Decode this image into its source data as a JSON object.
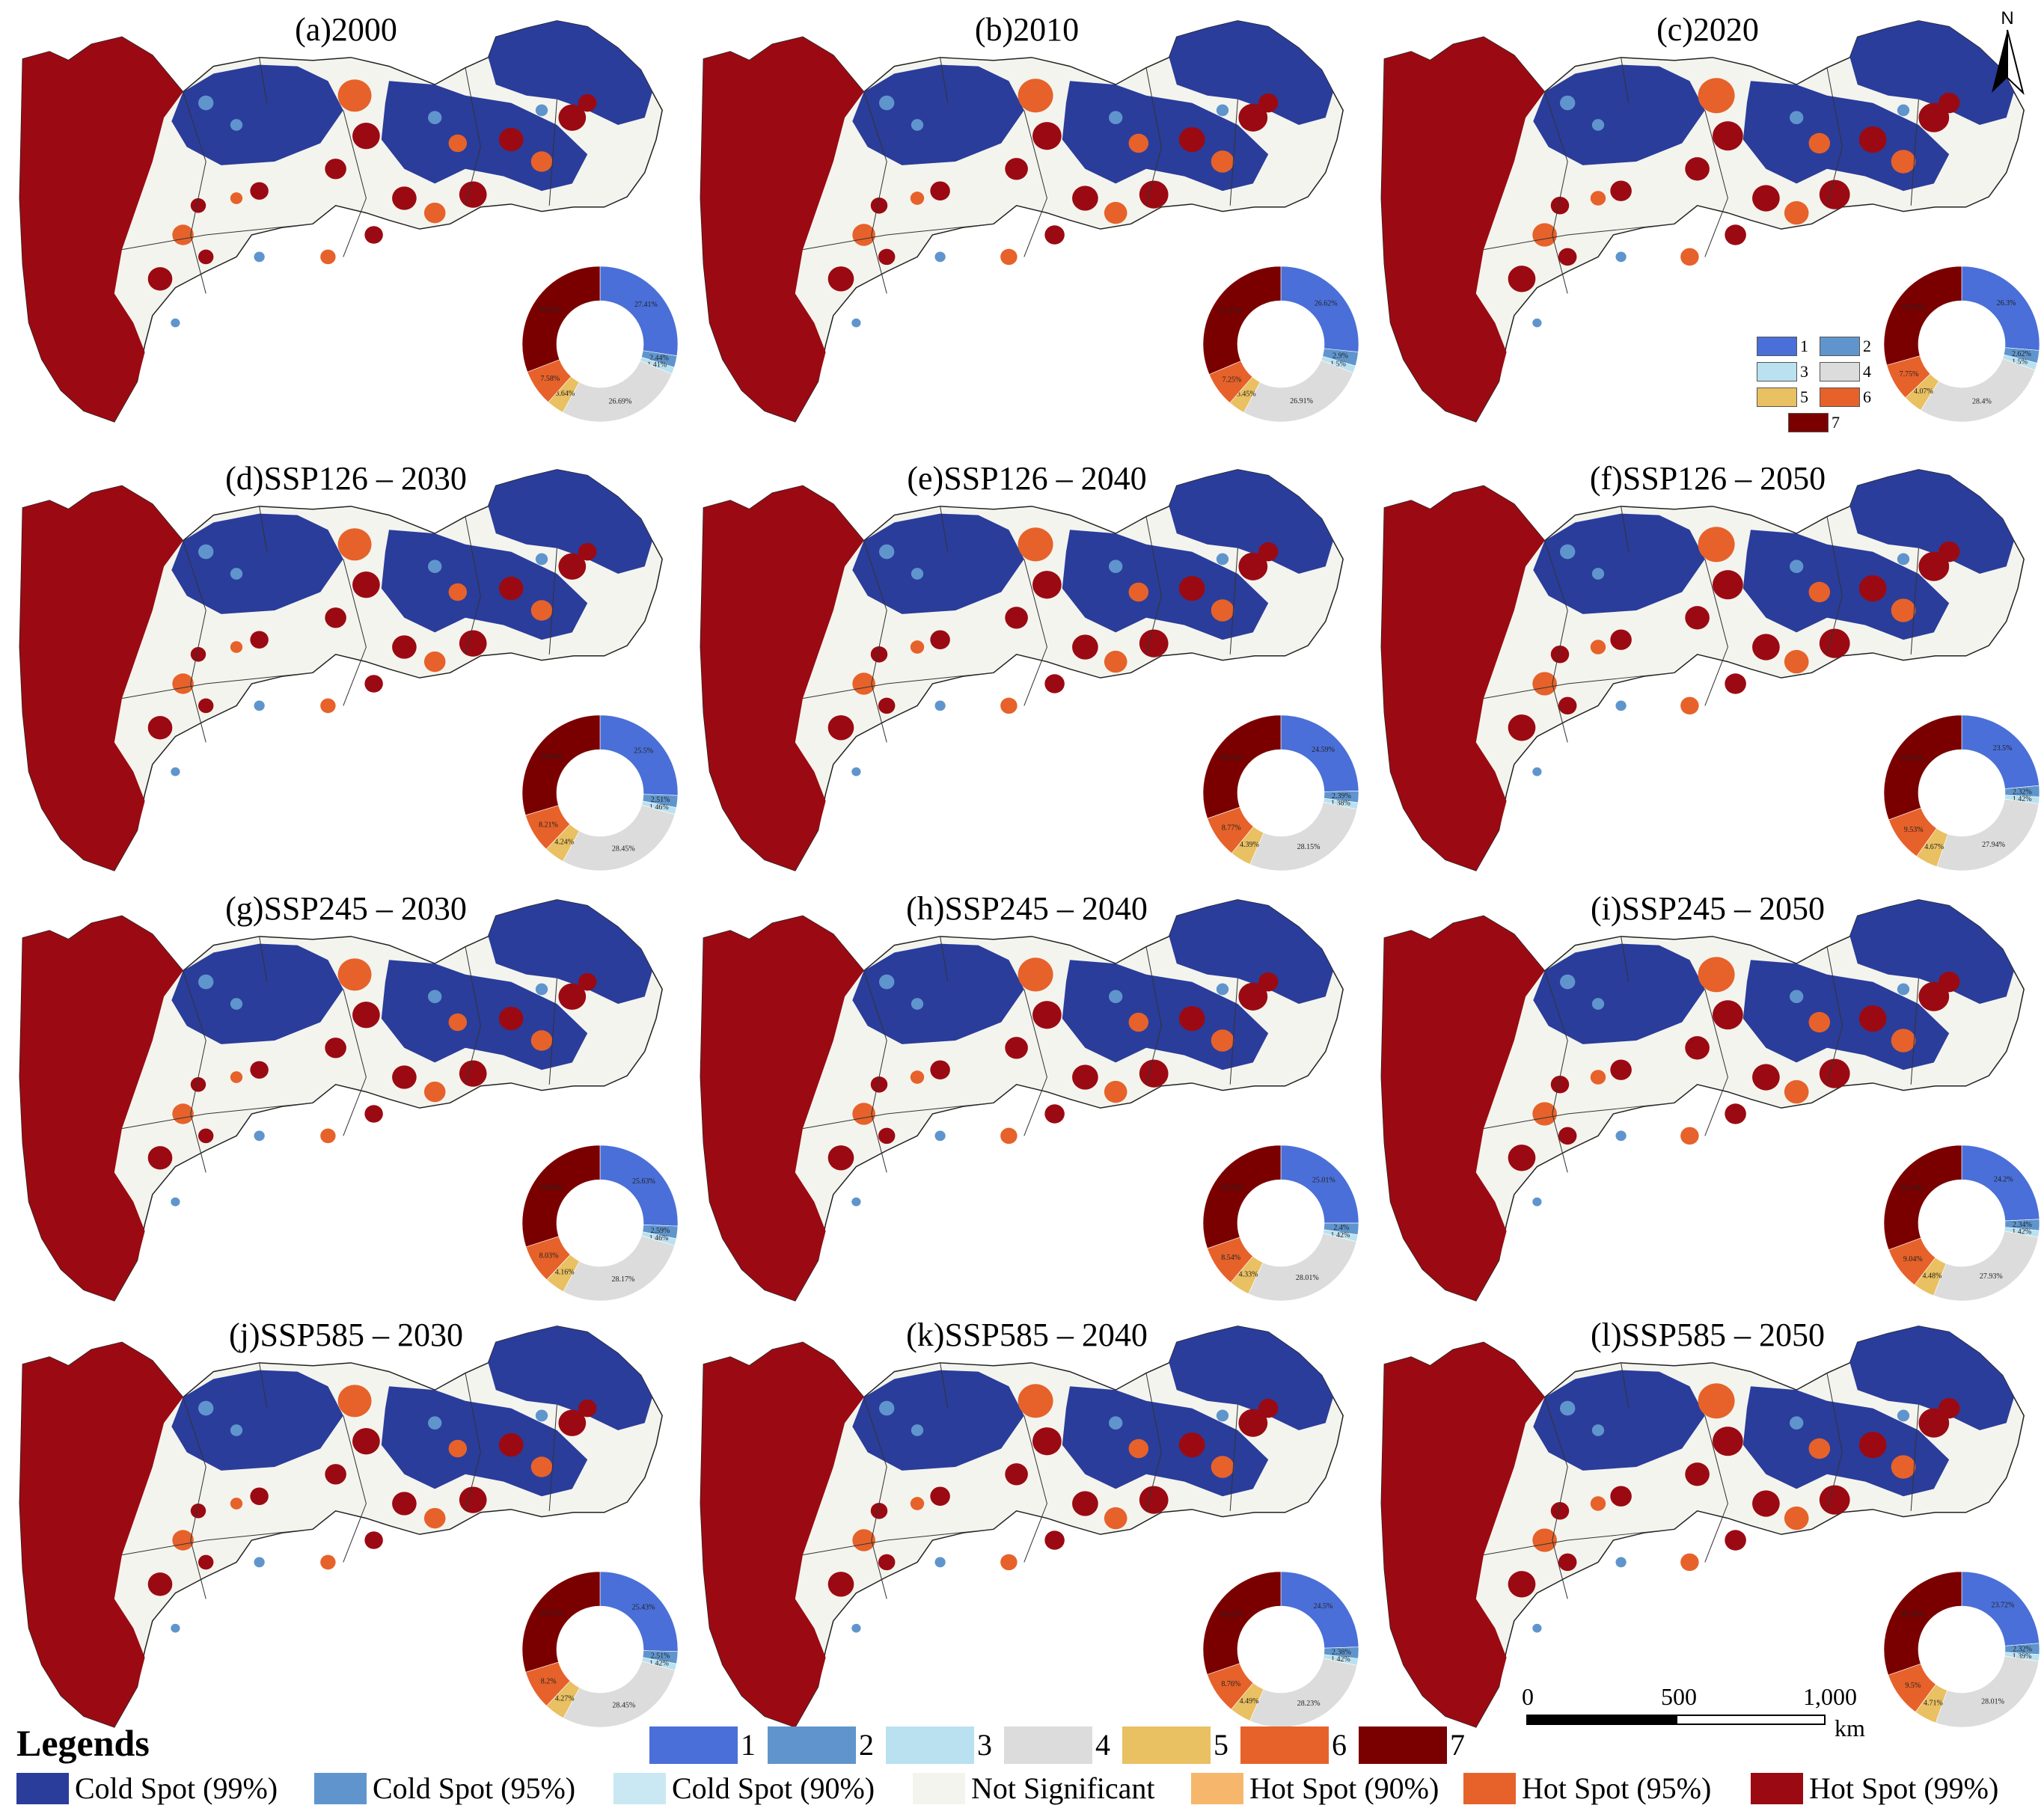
{
  "colors": {
    "class": [
      "#4a6fd8",
      "#5f95cc",
      "#b9e1f0",
      "#dcdcdc",
      "#e9c062",
      "#e6622a",
      "#7a0000"
    ],
    "sig": [
      "#2a3d9b",
      "#5f95cc",
      "#c9e8f3",
      "#f4f4ee",
      "#f6b76c",
      "#e6622a",
      "#9b0a12"
    ]
  },
  "panels": [
    {
      "title": "(a)2000",
      "donut": {
        "c1": "27.41%",
        "c2": "2.44%",
        "c3": "1.41%",
        "c4": "26.69%",
        "c5": "3.64%",
        "c6": "7.58%",
        "c7": "30.83%"
      },
      "shares": [
        27.41,
        2.44,
        1.41,
        26.69,
        3.64,
        7.58,
        30.83
      ]
    },
    {
      "title": "(b)2010",
      "donut": {
        "c1": "26.62%",
        "c2": "2.9%",
        "c3": "1.5%",
        "c4": "26.91%",
        "c5": "3.45%",
        "c6": "7.25%",
        "c7": "31.37%"
      },
      "shares": [
        26.62,
        2.9,
        1.5,
        26.91,
        3.45,
        7.25,
        31.37
      ]
    },
    {
      "title": "(c)2020",
      "donut": {
        "c1": "26.3%",
        "c2": "2.62%",
        "c3": "1.5%",
        "c4": "28.4%",
        "c5": "4.07%",
        "c6": "7.75%",
        "c7": "29.36%"
      },
      "shares": [
        26.3,
        2.62,
        1.5,
        28.4,
        4.07,
        7.75,
        29.36
      ]
    },
    {
      "title": "(d)SSP126 – 2030",
      "donut": {
        "c1": "25.5%",
        "c2": "2.51%",
        "c3": "1.46%",
        "c4": "28.45%",
        "c5": "4.24%",
        "c6": "8.21%",
        "c7": "29.63%"
      },
      "shares": [
        25.5,
        2.51,
        1.46,
        28.45,
        4.24,
        8.21,
        29.63
      ]
    },
    {
      "title": "(e)SSP126 – 2040",
      "donut": {
        "c1": "24.59%",
        "c2": "2.39%",
        "c3": "1.38%",
        "c4": "28.15%",
        "c5": "4.39%",
        "c6": "8.77%",
        "c7": "30.33%"
      },
      "shares": [
        24.59,
        2.39,
        1.38,
        28.15,
        4.39,
        8.77,
        30.33
      ]
    },
    {
      "title": "(f)SSP126 – 2050",
      "donut": {
        "c1": "23.5%",
        "c2": "2.32%",
        "c3": "1.42%",
        "c4": "27.94%",
        "c5": "4.67%",
        "c6": "9.53%",
        "c7": "30.62%"
      },
      "shares": [
        23.5,
        2.32,
        1.42,
        27.94,
        4.67,
        9.53,
        30.62
      ]
    },
    {
      "title": "(g)SSP245 – 2030",
      "donut": {
        "c1": "25.63%",
        "c2": "2.59%",
        "c3": "1.46%",
        "c4": "28.17%",
        "c5": "4.16%",
        "c6": "8.03%",
        "c7": "29.96%"
      },
      "shares": [
        25.63,
        2.59,
        1.46,
        28.17,
        4.16,
        8.03,
        29.96
      ]
    },
    {
      "title": "(h)SSP245 – 2040",
      "donut": {
        "c1": "25.01%",
        "c2": "2.4%",
        "c3": "1.42%",
        "c4": "28.01%",
        "c5": "4.33%",
        "c6": "8.54%",
        "c7": "30.29%"
      },
      "shares": [
        25.01,
        2.4,
        1.42,
        28.01,
        4.33,
        8.54,
        30.29
      ]
    },
    {
      "title": "(i)SSP245 – 2050",
      "donut": {
        "c1": "24.2%",
        "c2": "2.34%",
        "c3": "1.42%",
        "c4": "27.93%",
        "c5": "4.48%",
        "c6": "9.04%",
        "c7": "30.59%"
      },
      "shares": [
        24.2,
        2.34,
        1.42,
        27.93,
        4.48,
        9.04,
        30.59
      ]
    },
    {
      "title": "(j)SSP585 – 2030",
      "donut": {
        "c1": "25.43%",
        "c2": "2.51%",
        "c3": "1.42%",
        "c4": "28.45%",
        "c5": "4.27%",
        "c6": "8.2%",
        "c7": "29.72%"
      },
      "shares": [
        25.43,
        2.51,
        1.42,
        28.45,
        4.27,
        8.2,
        29.72
      ]
    },
    {
      "title": "(k)SSP585 – 2040",
      "donut": {
        "c1": "24.5%",
        "c2": "2.38%",
        "c3": "1.42%",
        "c4": "28.23%",
        "c5": "4.49%",
        "c6": "8.76%",
        "c7": "30.22%"
      },
      "shares": [
        24.5,
        2.38,
        1.42,
        28.23,
        4.49,
        8.76,
        30.22
      ]
    },
    {
      "title": "(l)SSP585 – 2050",
      "donut": {
        "c1": "23.72%",
        "c2": "2.32%",
        "c3": "1.39%",
        "c4": "28.01%",
        "c5": "4.71%",
        "c6": "9.5%",
        "c7": "30.35%"
      },
      "shares": [
        23.72,
        2.32,
        1.39,
        28.01,
        4.71,
        9.5,
        30.35
      ]
    }
  ],
  "inset_legend": {
    "labels": [
      "1",
      "2",
      "3",
      "4",
      "5",
      "6",
      "7"
    ]
  },
  "north_label": "N",
  "legend": {
    "title": "Legends",
    "classes": [
      "1",
      "2",
      "3",
      "4",
      "5",
      "6",
      "7"
    ],
    "significance": [
      "Cold Spot (99%)",
      "Cold Spot (95%)",
      "Cold Spot (90%)",
      "Not Significant",
      "Hot Spot (90%)",
      "Hot Spot (95%)",
      "Hot Spot (99%)"
    ]
  },
  "scale_bar": {
    "ticks": [
      "0",
      "500",
      "1,000"
    ],
    "unit": "km"
  }
}
